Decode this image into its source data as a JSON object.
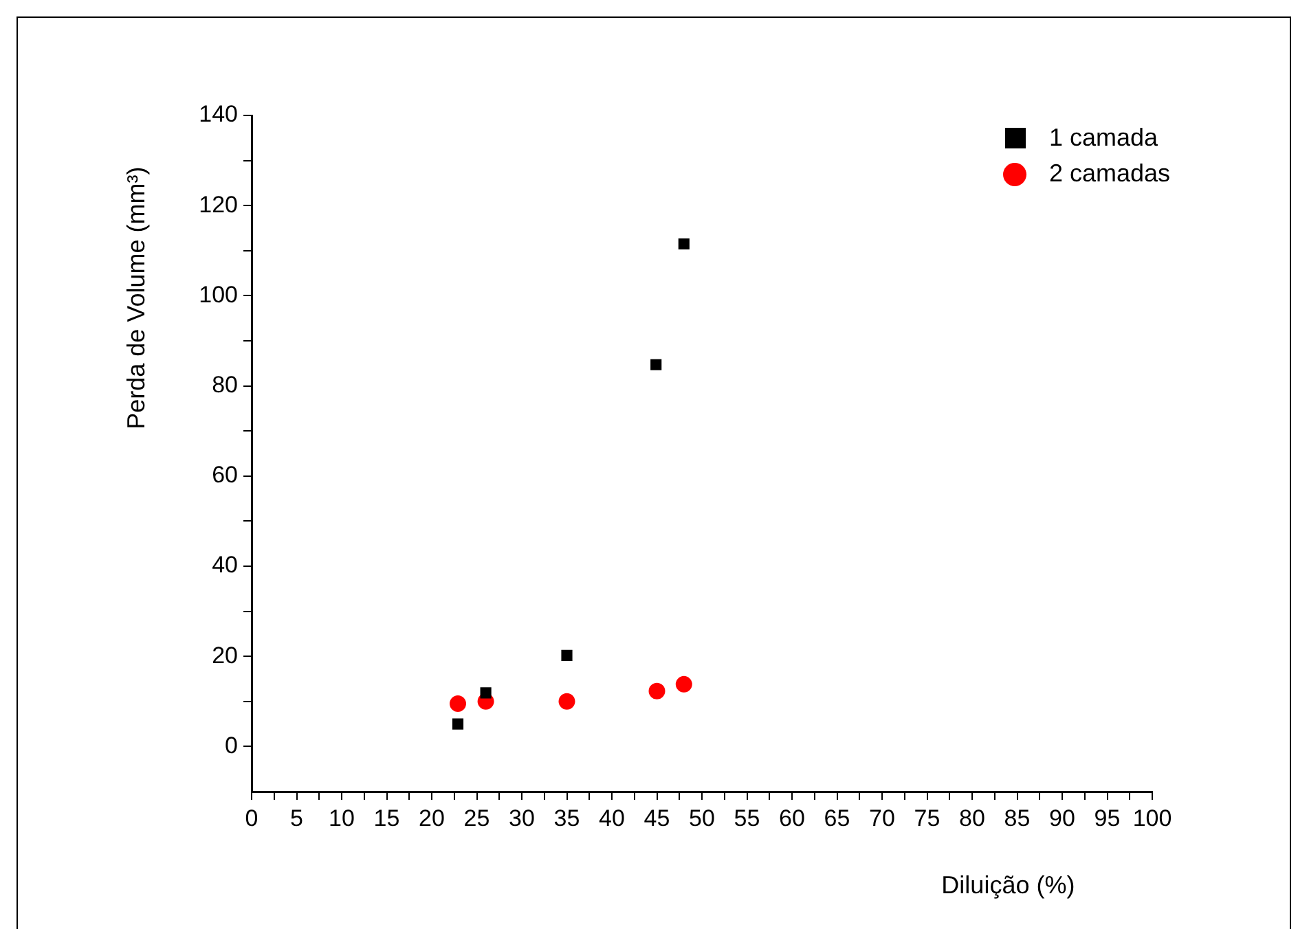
{
  "chart_data": {
    "type": "scatter",
    "xlabel": "Diluição (%)",
    "ylabel": "Perda de Volume (mm³)",
    "xlim": [
      0,
      100
    ],
    "ylim": [
      -10,
      140
    ],
    "xticks": [
      0,
      {
        "value": 2.5,
        "label": null
      },
      5,
      {
        "value": 7.5,
        "label": null
      },
      10,
      {
        "value": 12.5,
        "label": null
      },
      15,
      {
        "value": 17.5,
        "label": null
      },
      20,
      {
        "value": 22.5,
        "label": null
      },
      25,
      {
        "value": 27.5,
        "label": null
      },
      30,
      {
        "value": 32.5,
        "label": null
      },
      35,
      {
        "value": 37.5,
        "label": null
      },
      40,
      {
        "value": 42.5,
        "label": null
      },
      45,
      {
        "value": 47.5,
        "label": null
      },
      50,
      {
        "value": 52.5,
        "label": null
      },
      55,
      {
        "value": 57.5,
        "label": null
      },
      60,
      {
        "value": 62.5,
        "label": null
      },
      65,
      {
        "value": 67.5,
        "label": null
      },
      70,
      {
        "value": 72.5,
        "label": null
      },
      75,
      {
        "value": 77.5,
        "label": null
      },
      80,
      {
        "value": 82.5,
        "label": null
      },
      85,
      {
        "value": 87.5,
        "label": null
      },
      90,
      {
        "value": 92.5,
        "label": null
      },
      95,
      {
        "value": 97.5,
        "label": null
      },
      100
    ],
    "yticks": [
      0,
      {
        "value": 10,
        "label": null
      },
      20,
      {
        "value": 30,
        "label": null
      },
      40,
      {
        "value": 50,
        "label": null
      },
      60,
      {
        "value": 70,
        "label": null
      },
      80,
      {
        "value": 90,
        "label": null
      },
      100,
      {
        "value": 110,
        "label": null
      },
      120,
      {
        "value": 130,
        "label": null
      },
      140
    ],
    "grid": false,
    "legend": "top right",
    "series": [
      {
        "name": "1 camada",
        "color": "#000000",
        "marker": "square",
        "x": [
          22.9,
          26,
          35,
          44.9,
          48
        ],
        "values": [
          5,
          11.9,
          20.2,
          84.7,
          111.5
        ]
      },
      {
        "name": "2 camadas",
        "color": "#ff0000",
        "marker": "circle",
        "x": [
          22.9,
          26,
          35,
          45,
          48
        ],
        "values": [
          9.5,
          10,
          10,
          12.3,
          13.8
        ]
      }
    ]
  }
}
